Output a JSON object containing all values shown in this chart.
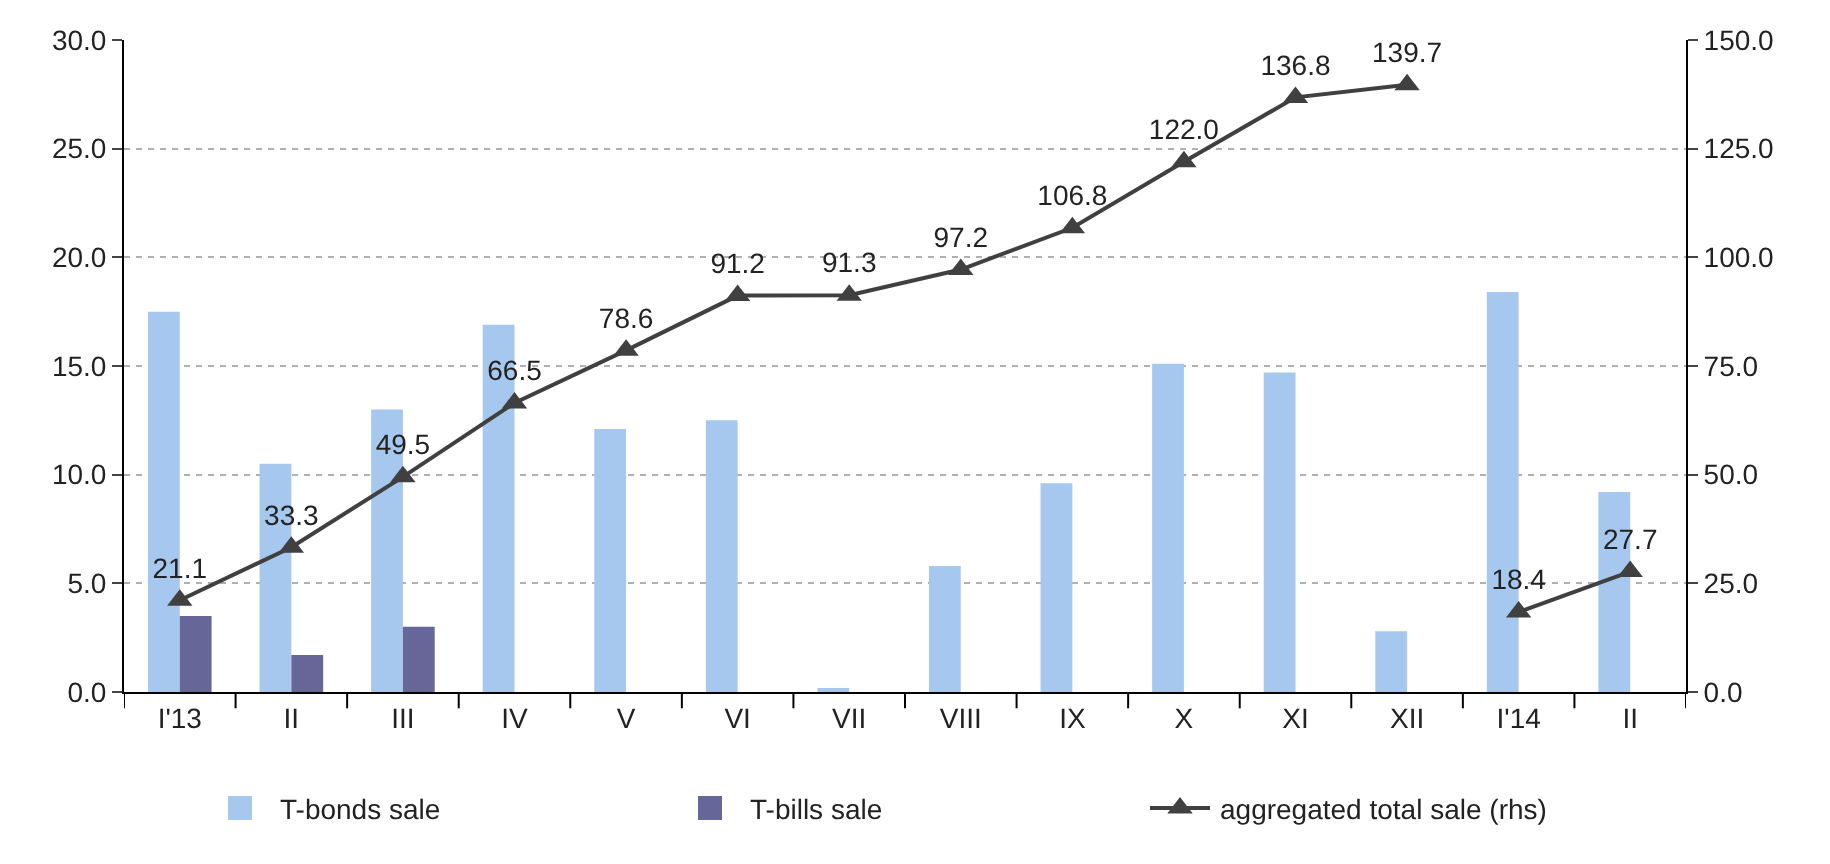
{
  "chart_data": {
    "type": "bar",
    "categories": [
      "I'13",
      "II",
      "III",
      "IV",
      "V",
      "VI",
      "VII",
      "VIII",
      "IX",
      "X",
      "XI",
      "XII",
      "I'14",
      "II"
    ],
    "series": [
      {
        "name": "T-bonds sale",
        "color": "#a6c8ee",
        "values": [
          17.5,
          10.5,
          13.0,
          16.9,
          12.1,
          12.5,
          0.1,
          5.8,
          9.6,
          15.1,
          14.7,
          2.8,
          18.4,
          9.2
        ]
      },
      {
        "name": "T-bills sale",
        "color": "#666699",
        "values": [
          3.5,
          1.7,
          3.0,
          null,
          null,
          null,
          null,
          null,
          null,
          null,
          null,
          null,
          null,
          null
        ]
      },
      {
        "name": "aggregated total sale (rhs)",
        "type": "line",
        "axis": "y2",
        "color": "#404040",
        "marker": "triangle",
        "value_labels": [
          "21.1",
          "33.3",
          "49.5",
          "66.5",
          "78.6",
          "91.2",
          "91.3",
          "97.2",
          "106.8",
          "122.0",
          "136.8",
          "139.7",
          null,
          null
        ],
        "values": [
          21.1,
          33.3,
          49.5,
          66.5,
          78.6,
          91.2,
          91.3,
          97.2,
          106.8,
          122.0,
          136.8,
          139.7,
          null,
          null
        ]
      },
      {
        "type": "line",
        "axis": "y2",
        "color": "#404040",
        "marker": "triangle",
        "value_labels": [
          null,
          null,
          null,
          null,
          null,
          null,
          null,
          null,
          null,
          null,
          null,
          null,
          "18.4",
          "27.7"
        ],
        "values": [
          null,
          null,
          null,
          null,
          null,
          null,
          null,
          null,
          null,
          null,
          null,
          null,
          18.4,
          27.7
        ]
      }
    ],
    "ylim": [
      0,
      30
    ],
    "yticks": [
      {
        "value": 0,
        "label": "0.0"
      },
      {
        "value": 5,
        "label": "5.0"
      },
      {
        "value": 10,
        "label": "10.0"
      },
      {
        "value": 15,
        "label": "15.0"
      },
      {
        "value": 20,
        "label": "20.0"
      },
      {
        "value": 25,
        "label": "25.0"
      },
      {
        "value": 30,
        "label": "30.0"
      }
    ],
    "y2lim": [
      0,
      150
    ],
    "y2ticks": [
      {
        "value": 0,
        "label": "0.0"
      },
      {
        "value": 25,
        "label": "25.0"
      },
      {
        "value": 50,
        "label": "50.0"
      },
      {
        "value": 75,
        "label": "75.0"
      },
      {
        "value": 100,
        "label": "100.0"
      },
      {
        "value": 125,
        "label": "125.0"
      },
      {
        "value": 150,
        "label": "150.0"
      }
    ],
    "grid": "y",
    "legend": "bottom"
  }
}
